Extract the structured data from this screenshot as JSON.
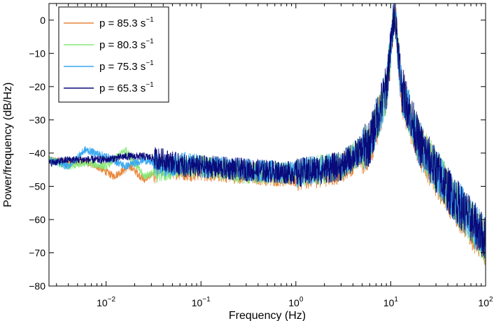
{
  "chart_data": {
    "type": "line",
    "title": "",
    "xlabel": "Frequency (Hz)",
    "ylabel": "Power/frequency (dB/Hz)",
    "xscale": "log",
    "xlim": [
      0.0025,
      100
    ],
    "ylim": [
      -80,
      5
    ],
    "grid": false,
    "legend_position": "top-left",
    "x_ticks": [
      {
        "value": 0.01,
        "base": "10",
        "exp": "−2"
      },
      {
        "value": 0.1,
        "base": "10",
        "exp": "−1"
      },
      {
        "value": 1,
        "base": "10",
        "exp": "0"
      },
      {
        "value": 10,
        "base": "10",
        "exp": "1"
      },
      {
        "value": 100,
        "base": "10",
        "exp": "2"
      }
    ],
    "y_ticks": [
      0,
      -10,
      -20,
      -30,
      -40,
      -50,
      -60,
      -70,
      -80
    ],
    "peak_frequency_hz": 11,
    "series": [
      {
        "name": "p = 85.3 s",
        "exp": "−1",
        "color": "#e8863a",
        "points": [
          [
            0.0025,
            -42
          ],
          [
            0.004,
            -43
          ],
          [
            0.006,
            -42.5
          ],
          [
            0.008,
            -44
          ],
          [
            0.012,
            -47
          ],
          [
            0.018,
            -44
          ],
          [
            0.025,
            -48
          ],
          [
            0.04,
            -44
          ],
          [
            0.07,
            -45
          ],
          [
            0.1,
            -45
          ],
          [
            0.3,
            -46
          ],
          [
            1,
            -47
          ],
          [
            3,
            -45
          ],
          [
            6,
            -38
          ],
          [
            9,
            -22
          ],
          [
            11,
            3
          ],
          [
            13,
            -22
          ],
          [
            20,
            -38
          ],
          [
            40,
            -52
          ],
          [
            100,
            -68
          ]
        ]
      },
      {
        "name": "p = 80.3 s",
        "exp": "−1",
        "color": "#88e87a",
        "points": [
          [
            0.0025,
            -42
          ],
          [
            0.004,
            -44
          ],
          [
            0.006,
            -43
          ],
          [
            0.01,
            -44
          ],
          [
            0.016,
            -39
          ],
          [
            0.025,
            -47
          ],
          [
            0.04,
            -45
          ],
          [
            0.07,
            -44
          ],
          [
            0.1,
            -44
          ],
          [
            0.3,
            -46
          ],
          [
            1,
            -46
          ],
          [
            3,
            -44
          ],
          [
            6,
            -37
          ],
          [
            9,
            -21
          ],
          [
            11,
            4
          ],
          [
            13,
            -21
          ],
          [
            20,
            -37
          ],
          [
            40,
            -51
          ],
          [
            100,
            -67
          ]
        ]
      },
      {
        "name": "p = 75.3 s",
        "exp": "−1",
        "color": "#3aa8f0",
        "points": [
          [
            0.0025,
            -42
          ],
          [
            0.004,
            -44
          ],
          [
            0.006,
            -39
          ],
          [
            0.01,
            -41
          ],
          [
            0.016,
            -44
          ],
          [
            0.025,
            -42
          ],
          [
            0.04,
            -44
          ],
          [
            0.07,
            -43
          ],
          [
            0.1,
            -44
          ],
          [
            0.3,
            -45
          ],
          [
            1,
            -46
          ],
          [
            3,
            -44
          ],
          [
            6,
            -37
          ],
          [
            9,
            -21
          ],
          [
            11,
            3
          ],
          [
            13,
            -21
          ],
          [
            20,
            -37
          ],
          [
            40,
            -51
          ],
          [
            100,
            -66
          ]
        ]
      },
      {
        "name": "p = 65.3 s",
        "exp": "−1",
        "color": "#0a0a7a",
        "points": [
          [
            0.0025,
            -43
          ],
          [
            0.004,
            -42
          ],
          [
            0.006,
            -42
          ],
          [
            0.01,
            -42
          ],
          [
            0.016,
            -41
          ],
          [
            0.025,
            -41
          ],
          [
            0.04,
            -42
          ],
          [
            0.07,
            -44
          ],
          [
            0.1,
            -44
          ],
          [
            0.3,
            -45
          ],
          [
            1,
            -46
          ],
          [
            3,
            -44
          ],
          [
            6,
            -37
          ],
          [
            9,
            -20
          ],
          [
            11,
            3
          ],
          [
            13,
            -20
          ],
          [
            20,
            -37
          ],
          [
            40,
            -51
          ],
          [
            100,
            -66
          ]
        ]
      }
    ]
  }
}
